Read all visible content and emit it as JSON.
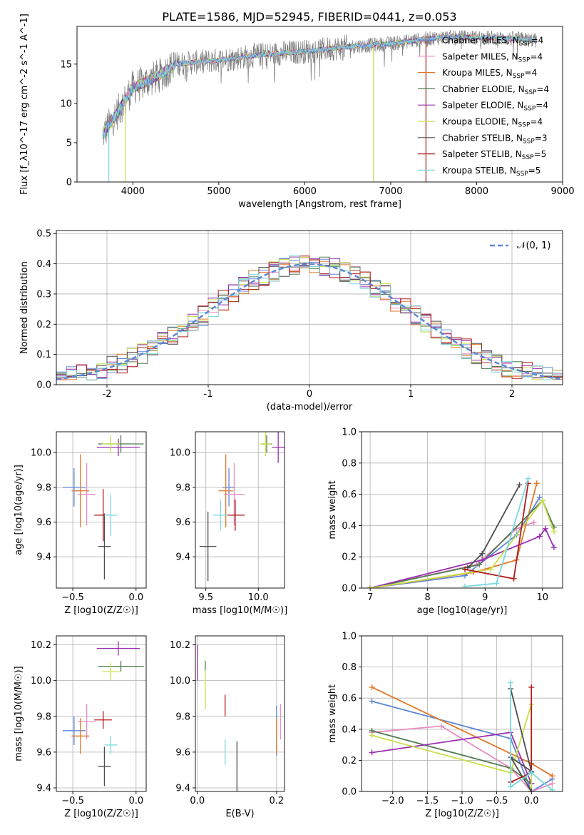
{
  "title": "PLATE=1586, MJD=52945, FIBERID=0441, z=0.053",
  "colors": {
    "chabrier_miles": "#5f86d8",
    "salpeter_miles": "#e68ec3",
    "kroupa_miles": "#e0782b",
    "chabrier_elodie": "#507a50",
    "salpeter_elodie": "#9b30b0",
    "kroupa_elodie": "#c8e04a",
    "chabrier_stelib": "#4d4d4d",
    "salpeter_stelib": "#b01c1c",
    "kroupa_stelib": "#7ad8dc",
    "data": "#7f7f7f",
    "grid": "#b0b0b0"
  },
  "chart_data": [
    {
      "id": "spectrum",
      "type": "line",
      "xlabel": "wavelength [Angstrom, rest frame]",
      "ylabel": "Flux [f_λ10^-17 erg cm^-2 s^-1 A^-1]",
      "xlim": [
        3350,
        9000
      ],
      "ylim": [
        0,
        19.8
      ],
      "xticks": [
        4000,
        5000,
        6000,
        7000,
        8000,
        9000
      ],
      "yticks": [
        0,
        5,
        10,
        15
      ],
      "grid": false,
      "legend_position": "upper right",
      "legend": [
        {
          "label": "Chabrier MILES, N",
          "sub": "SSP",
          "tail": "=4",
          "color_key": "chabrier_miles"
        },
        {
          "label": "Salpeter MILES, N",
          "sub": "SSP",
          "tail": "=4",
          "color_key": "salpeter_miles"
        },
        {
          "label": "Kroupa MILES, N",
          "sub": "SSP",
          "tail": "=4",
          "color_key": "kroupa_miles"
        },
        {
          "label": "Chabrier ELODIE, N",
          "sub": "SSP",
          "tail": "=4",
          "color_key": "chabrier_elodie"
        },
        {
          "label": "Salpeter ELODIE, N",
          "sub": "SSP",
          "tail": "=4",
          "color_key": "salpeter_elodie"
        },
        {
          "label": "Kroupa ELODIE, N",
          "sub": "SSP",
          "tail": "=4",
          "color_key": "kroupa_elodie"
        },
        {
          "label": "Chabrier STELIB, N",
          "sub": "SSP",
          "tail": "=3",
          "color_key": "chabrier_stelib"
        },
        {
          "label": "Salpeter STELIB, N",
          "sub": "SSP",
          "tail": "=5",
          "color_key": "salpeter_stelib"
        },
        {
          "label": "Kroupa STELIB, N",
          "sub": "SSP",
          "tail": "=5",
          "color_key": "kroupa_stelib"
        }
      ],
      "continuum_points": [
        [
          3650,
          6
        ],
        [
          3800,
          8.5
        ],
        [
          4000,
          12
        ],
        [
          4300,
          13.5
        ],
        [
          4500,
          15
        ],
        [
          5000,
          15.5
        ],
        [
          5500,
          16.2
        ],
        [
          6000,
          16.6
        ],
        [
          6500,
          17.2
        ],
        [
          7000,
          17.6
        ],
        [
          7400,
          18.2
        ],
        [
          7600,
          18.4
        ],
        [
          8000,
          18.4
        ],
        [
          8500,
          18.2
        ],
        [
          8700,
          18.0
        ]
      ]
    },
    {
      "id": "residuals",
      "type": "histogram",
      "xlabel": "(data-model)/error",
      "ylabel": "Normed distribution",
      "xlim": [
        -2.5,
        2.5
      ],
      "ylim": [
        0,
        0.51
      ],
      "xticks": [
        -2,
        -1,
        0,
        1,
        2
      ],
      "yticks": [
        0.0,
        0.1,
        0.2,
        0.3,
        0.4,
        0.5
      ],
      "grid": true,
      "bin_width": 0.1,
      "reference_curve": {
        "label": "𝒩(0, 1)",
        "mean": 0,
        "sigma": 1,
        "color_key": "chabrier_miles",
        "style": "dashed"
      }
    },
    {
      "id": "age_vs_Z",
      "type": "scatter",
      "xlabel": "Z [log10(Z/Z☉)]",
      "ylabel": "age  [log10(age/yr)]",
      "xlim": [
        -0.63,
        0.08
      ],
      "ylim": [
        9.22,
        10.12
      ],
      "xticks": [
        -0.5,
        0.0
      ],
      "yticks": [
        9.4,
        9.6,
        9.8,
        10.0
      ],
      "grid": true,
      "points": [
        {
          "color_key": "chabrier_miles",
          "x": -0.49,
          "xerr": 0.09,
          "y": 9.8,
          "yerr": 0.11
        },
        {
          "color_key": "salpeter_miles",
          "x": -0.39,
          "xerr": 0.07,
          "y": 9.76,
          "yerr": 0.18
        },
        {
          "color_key": "kroupa_miles",
          "x": -0.44,
          "xerr": 0.07,
          "y": 9.78,
          "yerr": 0.21
        },
        {
          "color_key": "chabrier_elodie",
          "x": -0.12,
          "xerr": 0.18,
          "y": 10.05,
          "yerr": 0.05
        },
        {
          "color_key": "salpeter_elodie",
          "x": -0.14,
          "xerr": 0.17,
          "y": 10.03,
          "yerr": 0.05
        },
        {
          "color_key": "kroupa_elodie",
          "x": -0.2,
          "xerr": 0.07,
          "y": 10.05,
          "yerr": 0.05
        },
        {
          "color_key": "chabrier_stelib",
          "x": -0.25,
          "xerr": 0.05,
          "y": 9.46,
          "yerr": 0.19
        },
        {
          "color_key": "salpeter_stelib",
          "x": -0.26,
          "xerr": 0.07,
          "y": 9.64,
          "yerr": 0.15
        },
        {
          "color_key": "kroupa_stelib",
          "x": -0.2,
          "xerr": 0.05,
          "y": 9.64,
          "yerr": 0.12
        }
      ]
    },
    {
      "id": "age_vs_mass",
      "type": "scatter",
      "xlabel": "mass [log10(M/M☉)]",
      "ylabel": "",
      "xlim": [
        9.4,
        10.25
      ],
      "ylim": [
        9.22,
        10.12
      ],
      "xticks": [
        9.5,
        10.0
      ],
      "yticks": [
        9.4,
        9.6,
        9.8,
        10.0
      ],
      "grid": true,
      "points": [
        {
          "color_key": "chabrier_miles",
          "x": 9.72,
          "xerr": 0.06,
          "y": 9.8,
          "yerr": 0.11
        },
        {
          "color_key": "salpeter_miles",
          "x": 9.77,
          "xerr": 0.1,
          "y": 9.76,
          "yerr": 0.18
        },
        {
          "color_key": "kroupa_miles",
          "x": 9.69,
          "xerr": 0.07,
          "y": 9.78,
          "yerr": 0.21
        },
        {
          "color_key": "chabrier_elodie",
          "x": 10.08,
          "xerr": 0.05,
          "y": 10.05,
          "yerr": 0.05
        },
        {
          "color_key": "salpeter_elodie",
          "x": 10.19,
          "xerr": 0.06,
          "y": 10.03,
          "yerr": 0.09
        },
        {
          "color_key": "kroupa_elodie",
          "x": 10.07,
          "xerr": 0.05,
          "y": 10.05,
          "yerr": 0.07
        },
        {
          "color_key": "chabrier_stelib",
          "x": 9.52,
          "xerr": 0.08,
          "y": 9.46,
          "yerr": 0.2
        },
        {
          "color_key": "salpeter_stelib",
          "x": 9.78,
          "xerr": 0.09,
          "y": 9.64,
          "yerr": 0.09
        },
        {
          "color_key": "kroupa_stelib",
          "x": 9.64,
          "xerr": 0.07,
          "y": 9.64,
          "yerr": 0.09
        }
      ]
    },
    {
      "id": "massweight_vs_age",
      "type": "line",
      "xlabel": "age  [log10(age/yr)]",
      "ylabel": "mass weight",
      "xlim": [
        6.85,
        10.35
      ],
      "ylim": [
        0.0,
        1.0
      ],
      "xticks": [
        7,
        8,
        9,
        10
      ],
      "yticks": [
        0.0,
        0.2,
        0.4,
        0.6,
        0.8,
        1.0
      ],
      "grid": true,
      "series": [
        {
          "color_key": "chabrier_miles",
          "x": [
            7.0,
            8.65,
            9.55,
            9.95
          ],
          "y": [
            0.0,
            0.08,
            0.34,
            0.58
          ]
        },
        {
          "color_key": "salpeter_miles",
          "x": [
            7.0,
            8.85,
            9.55,
            9.85
          ],
          "y": [
            0.0,
            0.15,
            0.38,
            0.42
          ]
        },
        {
          "color_key": "kroupa_miles",
          "x": [
            7.0,
            8.8,
            9.55,
            9.9
          ],
          "y": [
            0.0,
            0.1,
            0.18,
            0.67
          ]
        },
        {
          "color_key": "chabrier_elodie",
          "x": [
            7.0,
            8.9,
            10.0,
            10.2
          ],
          "y": [
            0.0,
            0.15,
            0.56,
            0.39
          ]
        },
        {
          "color_key": "salpeter_elodie",
          "x": [
            7.0,
            8.95,
            9.95,
            10.05,
            10.2
          ],
          "y": [
            0.0,
            0.18,
            0.33,
            0.38,
            0.26
          ]
        },
        {
          "color_key": "kroupa_elodie",
          "x": [
            7.0,
            9.1,
            10.0,
            10.2
          ],
          "y": [
            0.0,
            0.12,
            0.56,
            0.36
          ]
        },
        {
          "color_key": "chabrier_stelib",
          "x": [
            8.7,
            8.95,
            9.6
          ],
          "y": [
            0.13,
            0.22,
            0.66
          ]
        },
        {
          "color_key": "salpeter_stelib",
          "x": [
            8.65,
            9.5,
            9.75
          ],
          "y": [
            0.12,
            0.06,
            0.67
          ]
        },
        {
          "color_key": "kroupa_stelib",
          "x": [
            8.65,
            9.2,
            9.75
          ],
          "y": [
            0.01,
            0.03,
            0.7
          ]
        }
      ]
    },
    {
      "id": "mass_vs_Z",
      "type": "scatter",
      "xlabel": "Z [log10(Z/Z☉)]",
      "ylabel": "mass [log10(M/M☉)]",
      "xlim": [
        -0.63,
        0.08
      ],
      "ylim": [
        9.38,
        10.25
      ],
      "xticks": [
        -0.5,
        0.0
      ],
      "yticks": [
        9.4,
        9.6,
        9.8,
        10.0,
        10.2
      ],
      "grid": true,
      "points": [
        {
          "color_key": "chabrier_miles",
          "x": -0.49,
          "xerr": 0.09,
          "y": 9.72,
          "yerr": 0.08
        },
        {
          "color_key": "salpeter_miles",
          "x": -0.39,
          "xerr": 0.07,
          "y": 9.77,
          "yerr": 0.1
        },
        {
          "color_key": "kroupa_miles",
          "x": -0.44,
          "xerr": 0.07,
          "y": 9.69,
          "yerr": 0.1
        },
        {
          "color_key": "chabrier_elodie",
          "x": -0.12,
          "xerr": 0.18,
          "y": 10.08,
          "yerr": 0.03
        },
        {
          "color_key": "salpeter_elodie",
          "x": -0.14,
          "xerr": 0.17,
          "y": 10.18,
          "yerr": 0.04
        },
        {
          "color_key": "kroupa_elodie",
          "x": -0.2,
          "xerr": 0.07,
          "y": 10.05,
          "yerr": 0.05
        },
        {
          "color_key": "chabrier_stelib",
          "x": -0.25,
          "xerr": 0.05,
          "y": 9.52,
          "yerr": 0.11
        },
        {
          "color_key": "salpeter_stelib",
          "x": -0.26,
          "xerr": 0.07,
          "y": 9.78,
          "yerr": 0.05
        },
        {
          "color_key": "kroupa_stelib",
          "x": -0.2,
          "xerr": 0.05,
          "y": 9.64,
          "yerr": 0.05
        }
      ]
    },
    {
      "id": "mass_vs_ebv",
      "type": "scatter",
      "xlabel": "E(B-V)",
      "ylabel": "",
      "xlim": [
        -0.005,
        0.22
      ],
      "ylim": [
        9.38,
        10.25
      ],
      "xticks": [
        0.0,
        0.2
      ],
      "yticks": [
        9.4,
        9.6,
        9.8,
        10.0,
        10.2
      ],
      "grid": true,
      "points": [
        {
          "color_key": "chabrier_miles",
          "x": 0.2,
          "y": 9.72,
          "yerr": 0.14
        },
        {
          "color_key": "salpeter_miles",
          "x": 0.21,
          "y": 9.77,
          "yerr": 0.1
        },
        {
          "color_key": "kroupa_miles",
          "x": 0.2,
          "y": 9.69,
          "yerr": 0.1
        },
        {
          "color_key": "chabrier_elodie",
          "x": 0.02,
          "y": 10.08,
          "yerr": 0.03
        },
        {
          "color_key": "salpeter_elodie",
          "x": 0.0,
          "y": 10.1,
          "yerr": 0.1
        },
        {
          "color_key": "kroupa_elodie",
          "x": 0.02,
          "y": 9.95,
          "yerr": 0.11
        },
        {
          "color_key": "chabrier_stelib",
          "x": 0.1,
          "y": 9.52,
          "yerr": 0.14
        },
        {
          "color_key": "salpeter_stelib",
          "x": 0.07,
          "y": 9.86,
          "yerr": 0.06
        },
        {
          "color_key": "kroupa_stelib",
          "x": 0.07,
          "y": 9.6,
          "yerr": 0.07
        }
      ]
    },
    {
      "id": "massweight_vs_Z",
      "type": "line",
      "xlabel": "Z [log10(Z/Z☉)]",
      "ylabel": "mass weight",
      "xlim": [
        -2.45,
        0.45
      ],
      "ylim": [
        0.0,
        1.0
      ],
      "xticks": [
        -2.0,
        -1.5,
        -1.0,
        -0.5,
        0.0
      ],
      "yticks": [
        0.0,
        0.2,
        0.4,
        0.6,
        0.8,
        1.0
      ],
      "grid": true,
      "series": [
        {
          "color_key": "chabrier_miles",
          "x": [
            -2.3,
            -0.3,
            0.0,
            0.3
          ],
          "y": [
            0.58,
            0.34,
            0.0,
            0.08
          ]
        },
        {
          "color_key": "salpeter_miles",
          "x": [
            -2.3,
            -1.3,
            -0.3,
            0.0,
            0.3
          ],
          "y": [
            0.38,
            0.42,
            0.15,
            0.0,
            0.05
          ]
        },
        {
          "color_key": "kroupa_miles",
          "x": [
            -2.3,
            0.0,
            0.3
          ],
          "y": [
            0.67,
            0.18,
            0.1
          ]
        },
        {
          "color_key": "chabrier_elodie",
          "x": [
            -2.3,
            -0.3,
            0.0
          ],
          "y": [
            0.39,
            0.15,
            0.05
          ]
        },
        {
          "color_key": "salpeter_elodie",
          "x": [
            -2.3,
            -0.3,
            0.0
          ],
          "y": [
            0.25,
            0.38,
            0.05
          ]
        },
        {
          "color_key": "kroupa_elodie",
          "x": [
            -2.3,
            -0.3,
            0.0,
            0.0
          ],
          "y": [
            0.36,
            0.12,
            0.56,
            0.0
          ]
        },
        {
          "color_key": "chabrier_stelib",
          "x": [
            -0.3,
            0.0,
            -0.3,
            0.0
          ],
          "y": [
            0.66,
            0.13,
            0.22,
            0.0
          ]
        },
        {
          "color_key": "salpeter_stelib",
          "x": [
            -0.3,
            0.0,
            0.0
          ],
          "y": [
            0.06,
            0.12,
            0.67
          ]
        },
        {
          "color_key": "kroupa_stelib",
          "x": [
            -0.3,
            -0.3,
            0.0,
            0.3
          ],
          "y": [
            0.7,
            0.03,
            0.12,
            0.01
          ]
        }
      ]
    }
  ]
}
